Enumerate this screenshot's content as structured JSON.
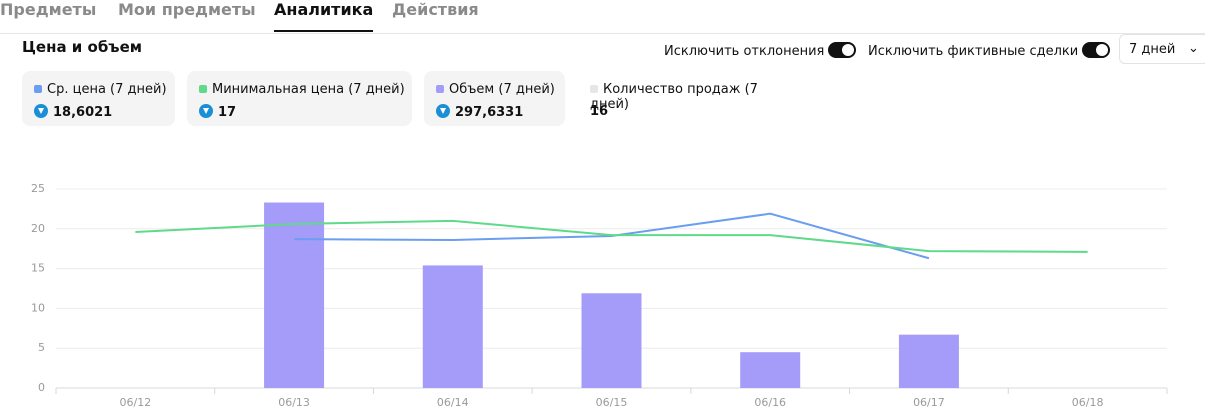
{
  "tabs": [
    "Предметы",
    "Мои предметы",
    "Аналитика",
    "Действия"
  ],
  "active_tab": 2,
  "section_title": "Цена и объем",
  "toggles": [
    "Исключить отклонения",
    "Исключить фиктивные сделки"
  ],
  "period": "7 дней",
  "stats": [
    {
      "label": "Ср. цена (7 дней)",
      "value": "18,6021",
      "color": "#6b9ef0",
      "icon": true
    },
    {
      "label": "Минимальная цена (7 дней)",
      "value": "17",
      "color": "#5fd98a",
      "icon": true
    },
    {
      "label": "Объем (7 дней)",
      "value": "297,6331",
      "color": "#a59cf9",
      "icon": true
    },
    {
      "label": "Количество продаж (7 дней)",
      "value": "16",
      "color": "#e6e6e6",
      "icon": false
    }
  ],
  "chart_data": {
    "type": "bar_line",
    "categories": [
      "06/12",
      "06/13",
      "06/14",
      "06/15",
      "06/16",
      "06/17",
      "06/18"
    ],
    "series": [
      {
        "type": "bar",
        "color": "#a59cf9",
        "values": [
          null,
          23.3,
          15.4,
          11.9,
          4.5,
          6.7,
          null
        ]
      },
      {
        "type": "line",
        "color": "#6b9ef0",
        "values": [
          null,
          18.7,
          18.6,
          19.1,
          21.9,
          16.3,
          null
        ]
      },
      {
        "type": "line",
        "color": "#5fd98a",
        "values": [
          19.6,
          20.6,
          21.0,
          19.2,
          19.2,
          17.2,
          17.1
        ]
      }
    ],
    "ylim": [
      0,
      25
    ],
    "yticks": [
      0,
      5,
      10,
      15,
      20,
      25
    ],
    "grid": true
  }
}
